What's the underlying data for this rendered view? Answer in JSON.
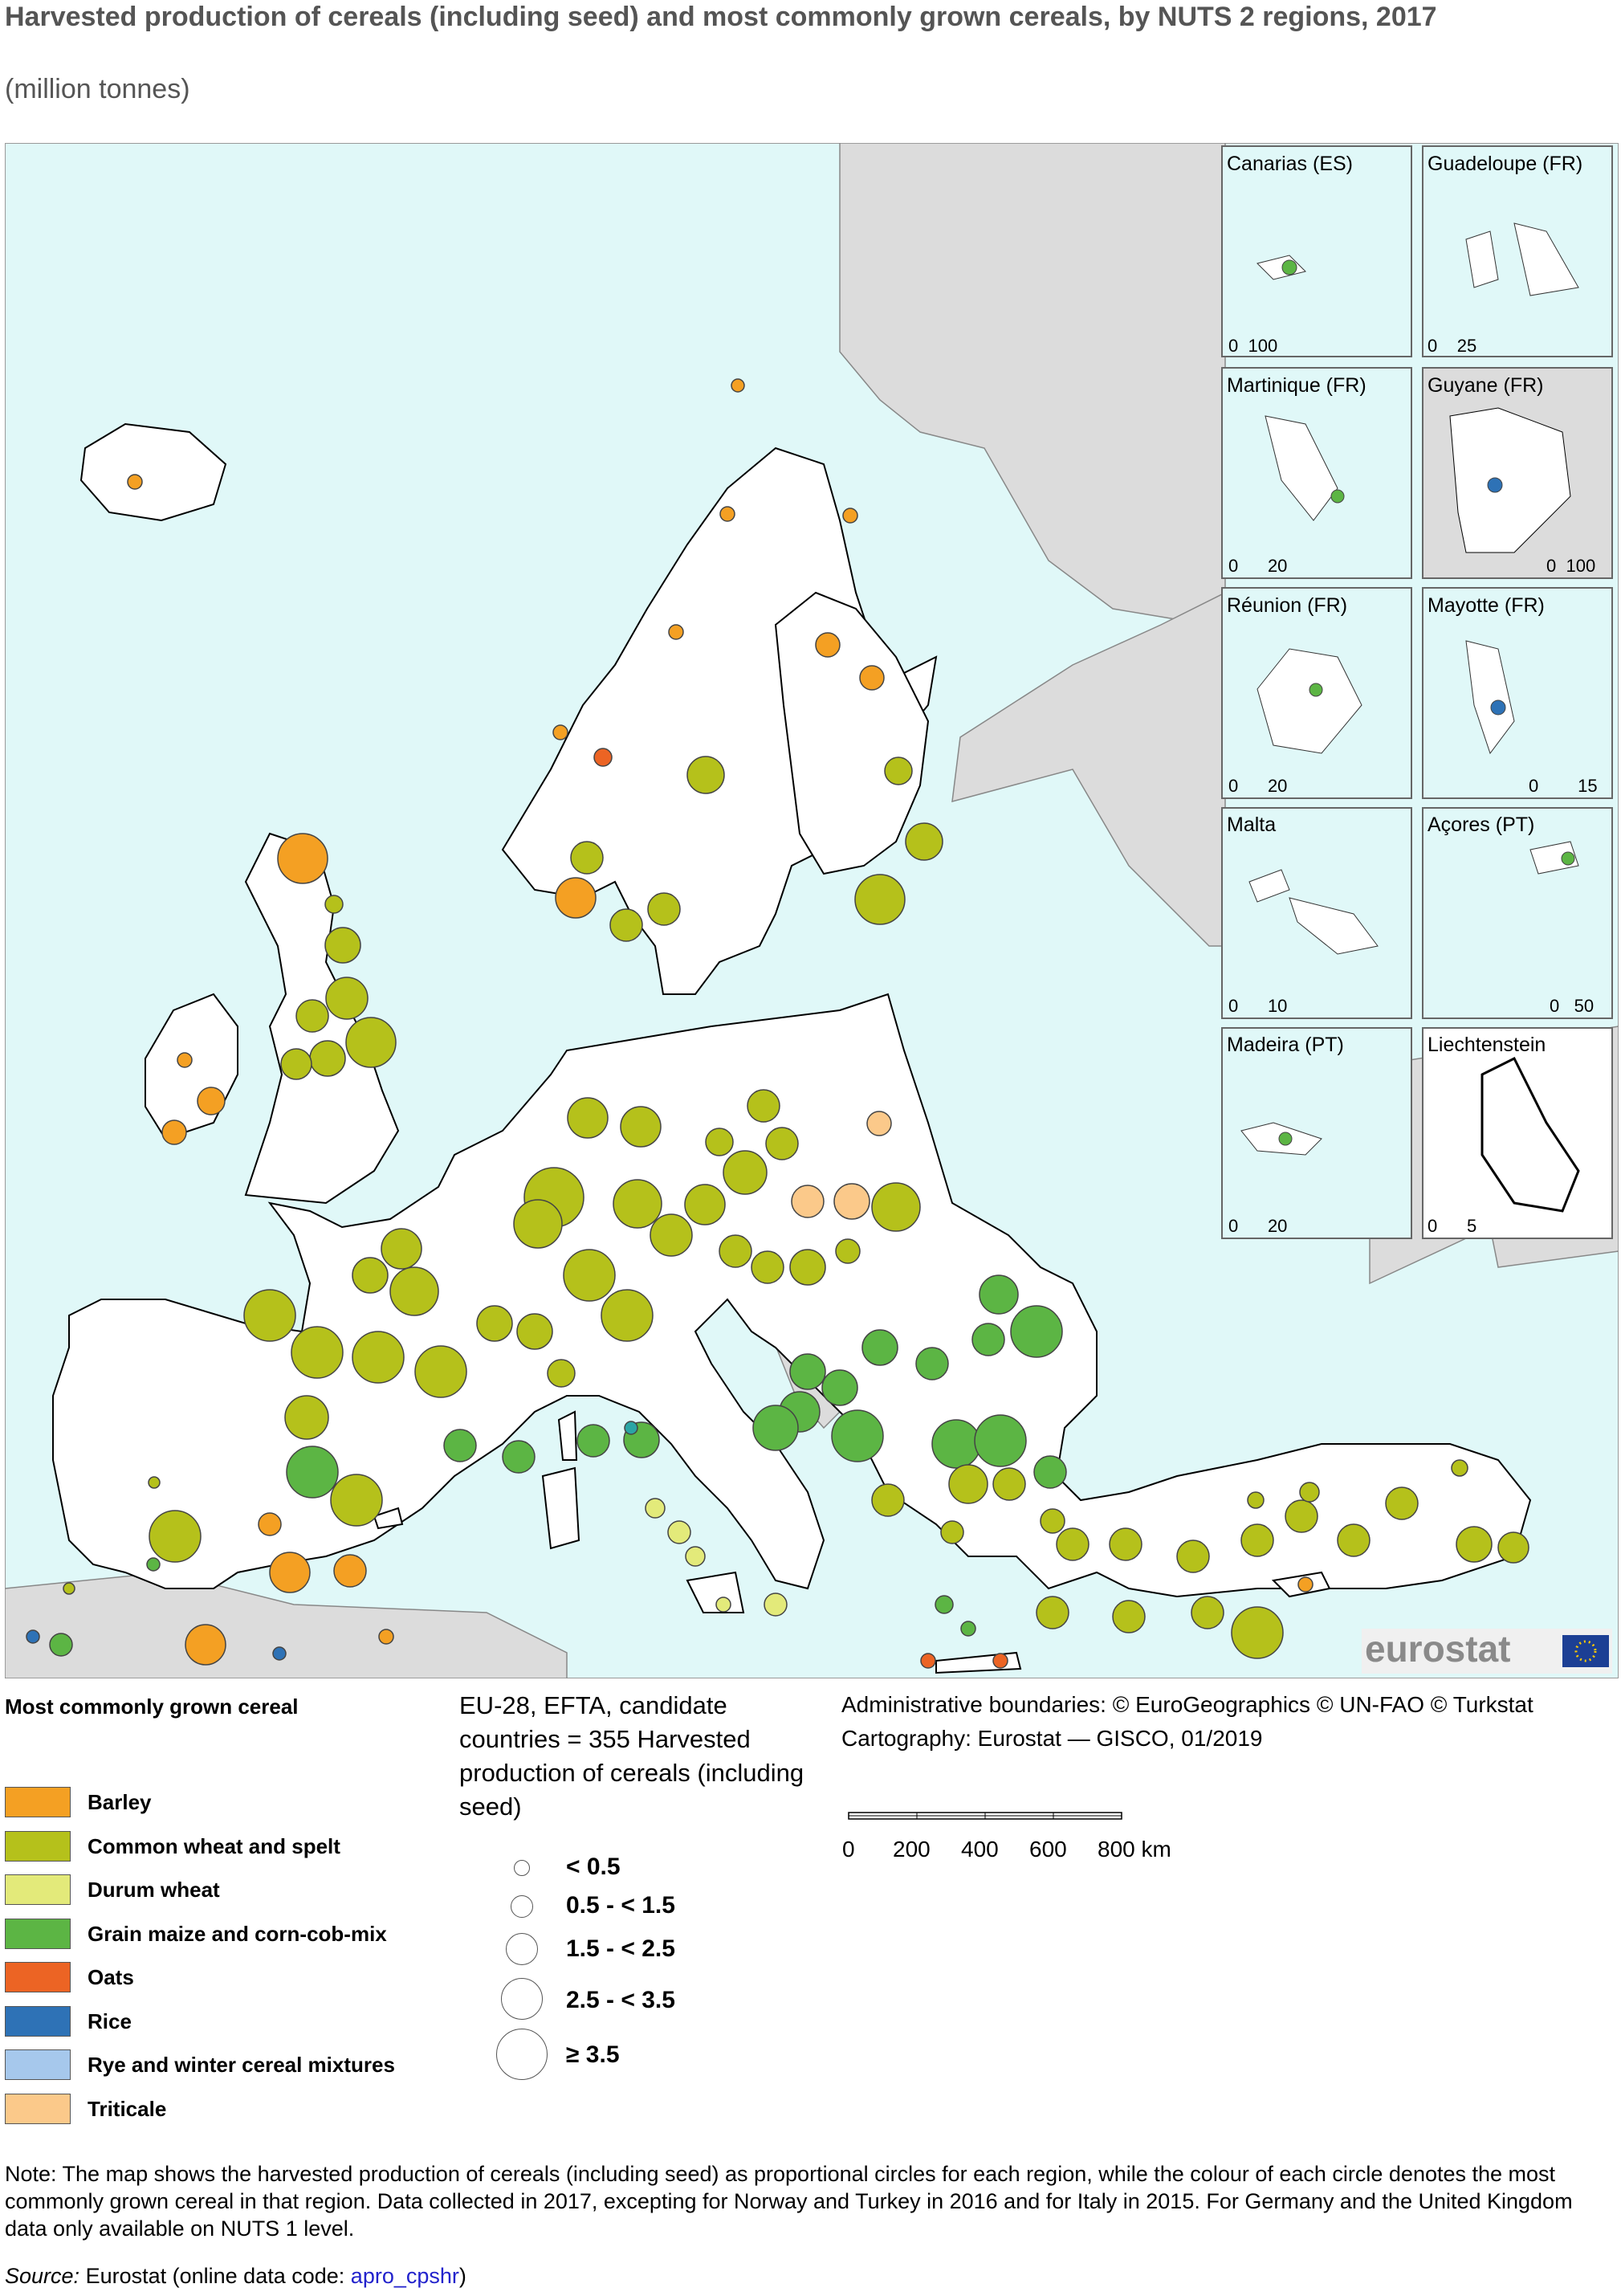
{
  "title": "Harvested production of cereals (including seed) and most commonly grown cereals, by NUTS 2 regions, 2017",
  "subtitle": "(million tonnes)",
  "colors": {
    "sea": "#e0f8f8",
    "non_eu_land": "#dcdcdc",
    "land": "#ffffff",
    "border": "#000000"
  },
  "cereal_legend": {
    "title": "Most commonly grown cereal",
    "items": [
      {
        "label": "Barley",
        "color": "#f4a023"
      },
      {
        "label": "Common wheat and spelt",
        "color": "#b5c11b"
      },
      {
        "label": "Durum wheat",
        "color": "#e3ea7a"
      },
      {
        "label": "Grain maize and corn-cob-mix",
        "color": "#5cb544"
      },
      {
        "label": "Oats",
        "color": "#ec6424"
      },
      {
        "label": "Rice",
        "color": "#2e72b6"
      },
      {
        "label": "Rye and winter cereal mixtures",
        "color": "#a6c8ec"
      },
      {
        "label": "Triticale",
        "color": "#fbc98a"
      }
    ]
  },
  "size_legend": {
    "heading": "EU-28, EFTA, candidate countries = 355 Harvested production of cereals (including seed)",
    "classes": [
      "< 0.5",
      "0.5 - < 1.5",
      "1.5 - < 2.5",
      "2.5 - < 3.5",
      "≥ 3.5"
    ]
  },
  "credits": {
    "line1": "Administrative boundaries: © EuroGeographics © UN-FAO © Turkstat",
    "line2": "Cartography: Eurostat — GISCO, 01/2019"
  },
  "scale": {
    "ticks": [
      "0",
      "200",
      "400",
      "600",
      "800 km"
    ]
  },
  "logo_text": "eurostat",
  "insets": [
    {
      "label": "Canarias (ES)",
      "scale": [
        "0",
        "100"
      ]
    },
    {
      "label": "Guadeloupe (FR)",
      "scale": [
        "0",
        "25"
      ]
    },
    {
      "label": "Martinique (FR)",
      "scale": [
        "0",
        "20"
      ]
    },
    {
      "label": "Guyane (FR)",
      "scale": [
        "0",
        "100"
      ]
    },
    {
      "label": "Réunion (FR)",
      "scale": [
        "0",
        "20"
      ]
    },
    {
      "label": "Mayotte (FR)",
      "scale": [
        "0",
        "15"
      ]
    },
    {
      "label": "Malta",
      "scale": [
        "0",
        "10"
      ]
    },
    {
      "label": "Açores (PT)",
      "scale": [
        "0",
        "50"
      ]
    },
    {
      "label": "Madeira (PT)",
      "scale": [
        "0",
        "20"
      ]
    },
    {
      "label": "Liechtenstein",
      "scale": [
        "0",
        "5"
      ]
    }
  ],
  "note": "Note: The map shows the harvested production of cereals (including seed) as proportional circles for each region, while the colour of each circle denotes the most commonly grown cereal in that region. Data collected in 2017, excepting for Norway and Turkey in 2016 and for Italy in 2015. For Germany and the United Kingdom data only available on NUTS 1 level.",
  "source": {
    "prefix": "Source:",
    "text": "Eurostat (online data code: ",
    "code": "apro_cpshr",
    "suffix": ")"
  }
}
